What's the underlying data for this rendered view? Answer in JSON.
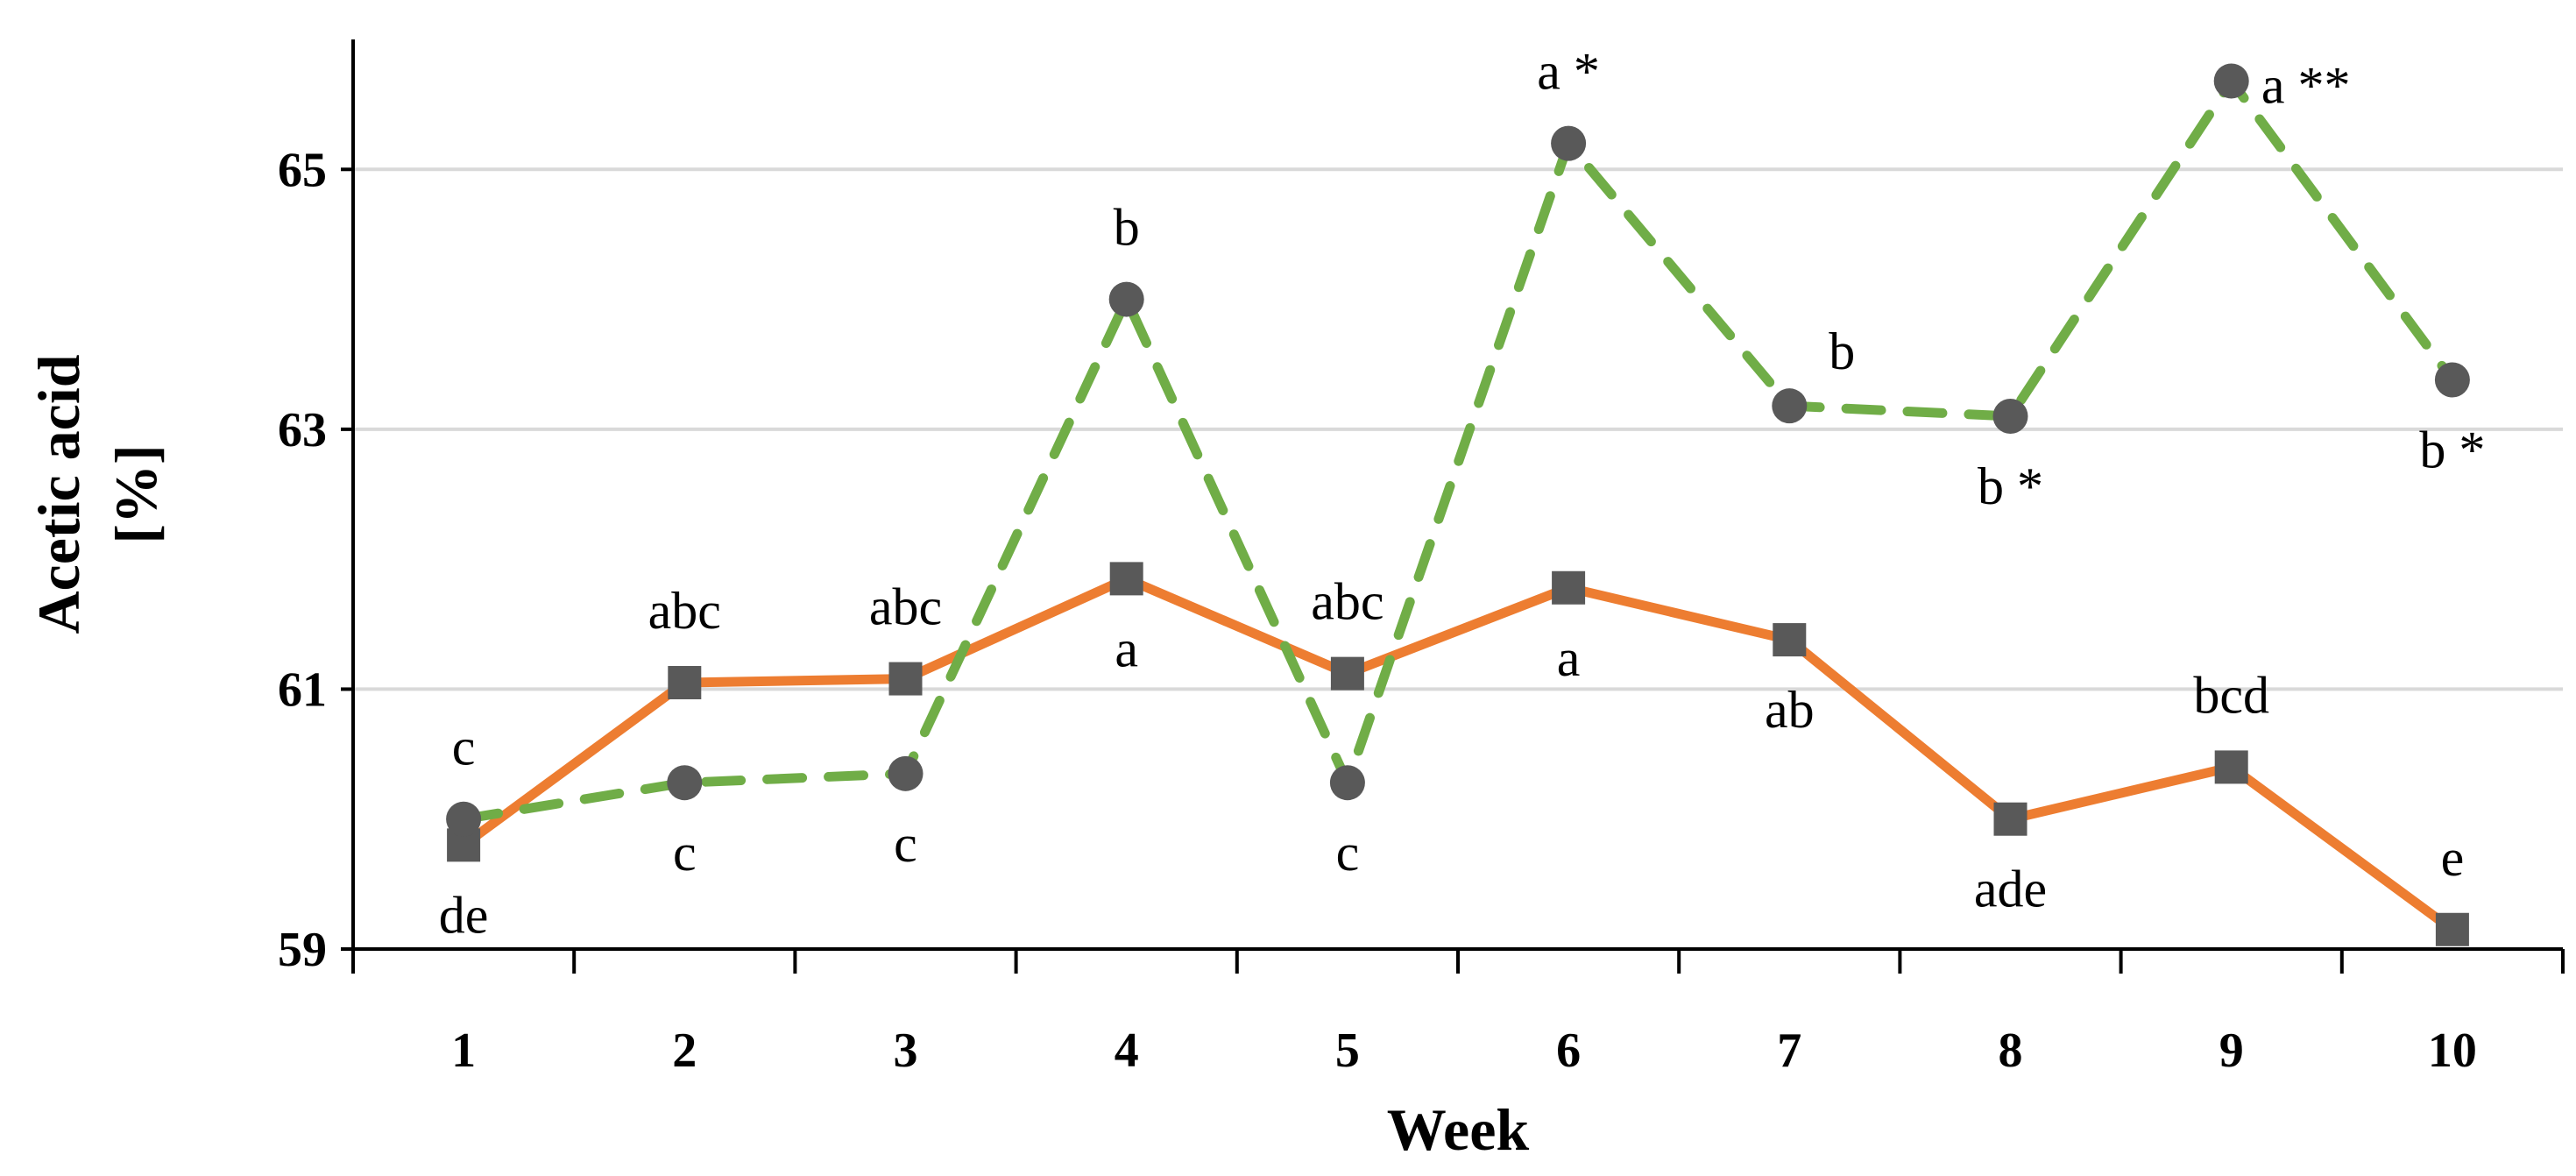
{
  "chart_data": {
    "type": "line",
    "title": "",
    "xlabel": "Week",
    "ylabel_lines": [
      "Acetic acid",
      "[%]"
    ],
    "categories": [
      "1",
      "2",
      "3",
      "4",
      "5",
      "6",
      "7",
      "8",
      "9",
      "10"
    ],
    "ylim": [
      59,
      66
    ],
    "yticks": [
      59,
      61,
      63,
      65
    ],
    "ytick_labels": [
      "59",
      "61",
      "63",
      "65"
    ],
    "grid": true,
    "legend": "none",
    "series": [
      {
        "name": "series-orange-solid",
        "color": "#ED7D31",
        "marker": "square",
        "marker_color": "#595959",
        "line_style": "solid",
        "values": [
          59.8,
          61.05,
          61.08,
          61.85,
          61.12,
          61.78,
          61.38,
          60.0,
          60.4,
          59.15
        ],
        "labels": [
          "de",
          "abc",
          "abc",
          "a",
          "abc",
          "a",
          "ab",
          "ade",
          "bcd",
          "e"
        ],
        "label_pos": [
          "below",
          "above",
          "above",
          "below",
          "above",
          "below",
          "below",
          "below",
          "above",
          "above"
        ]
      },
      {
        "name": "series-green-dashed",
        "color": "#70AD47",
        "marker": "circle",
        "marker_color": "#595959",
        "line_style": "dashed",
        "values": [
          60.0,
          60.28,
          60.35,
          64.0,
          60.28,
          65.2,
          63.18,
          63.1,
          65.68,
          63.38
        ],
        "labels": [
          "c",
          "c",
          "c",
          "b",
          "c",
          "a *",
          "b",
          "b *",
          "a **",
          "b *"
        ],
        "label_pos": [
          "above",
          "below",
          "below",
          "above",
          "below",
          "above",
          "above-right",
          "below",
          "right",
          "below"
        ]
      }
    ]
  }
}
